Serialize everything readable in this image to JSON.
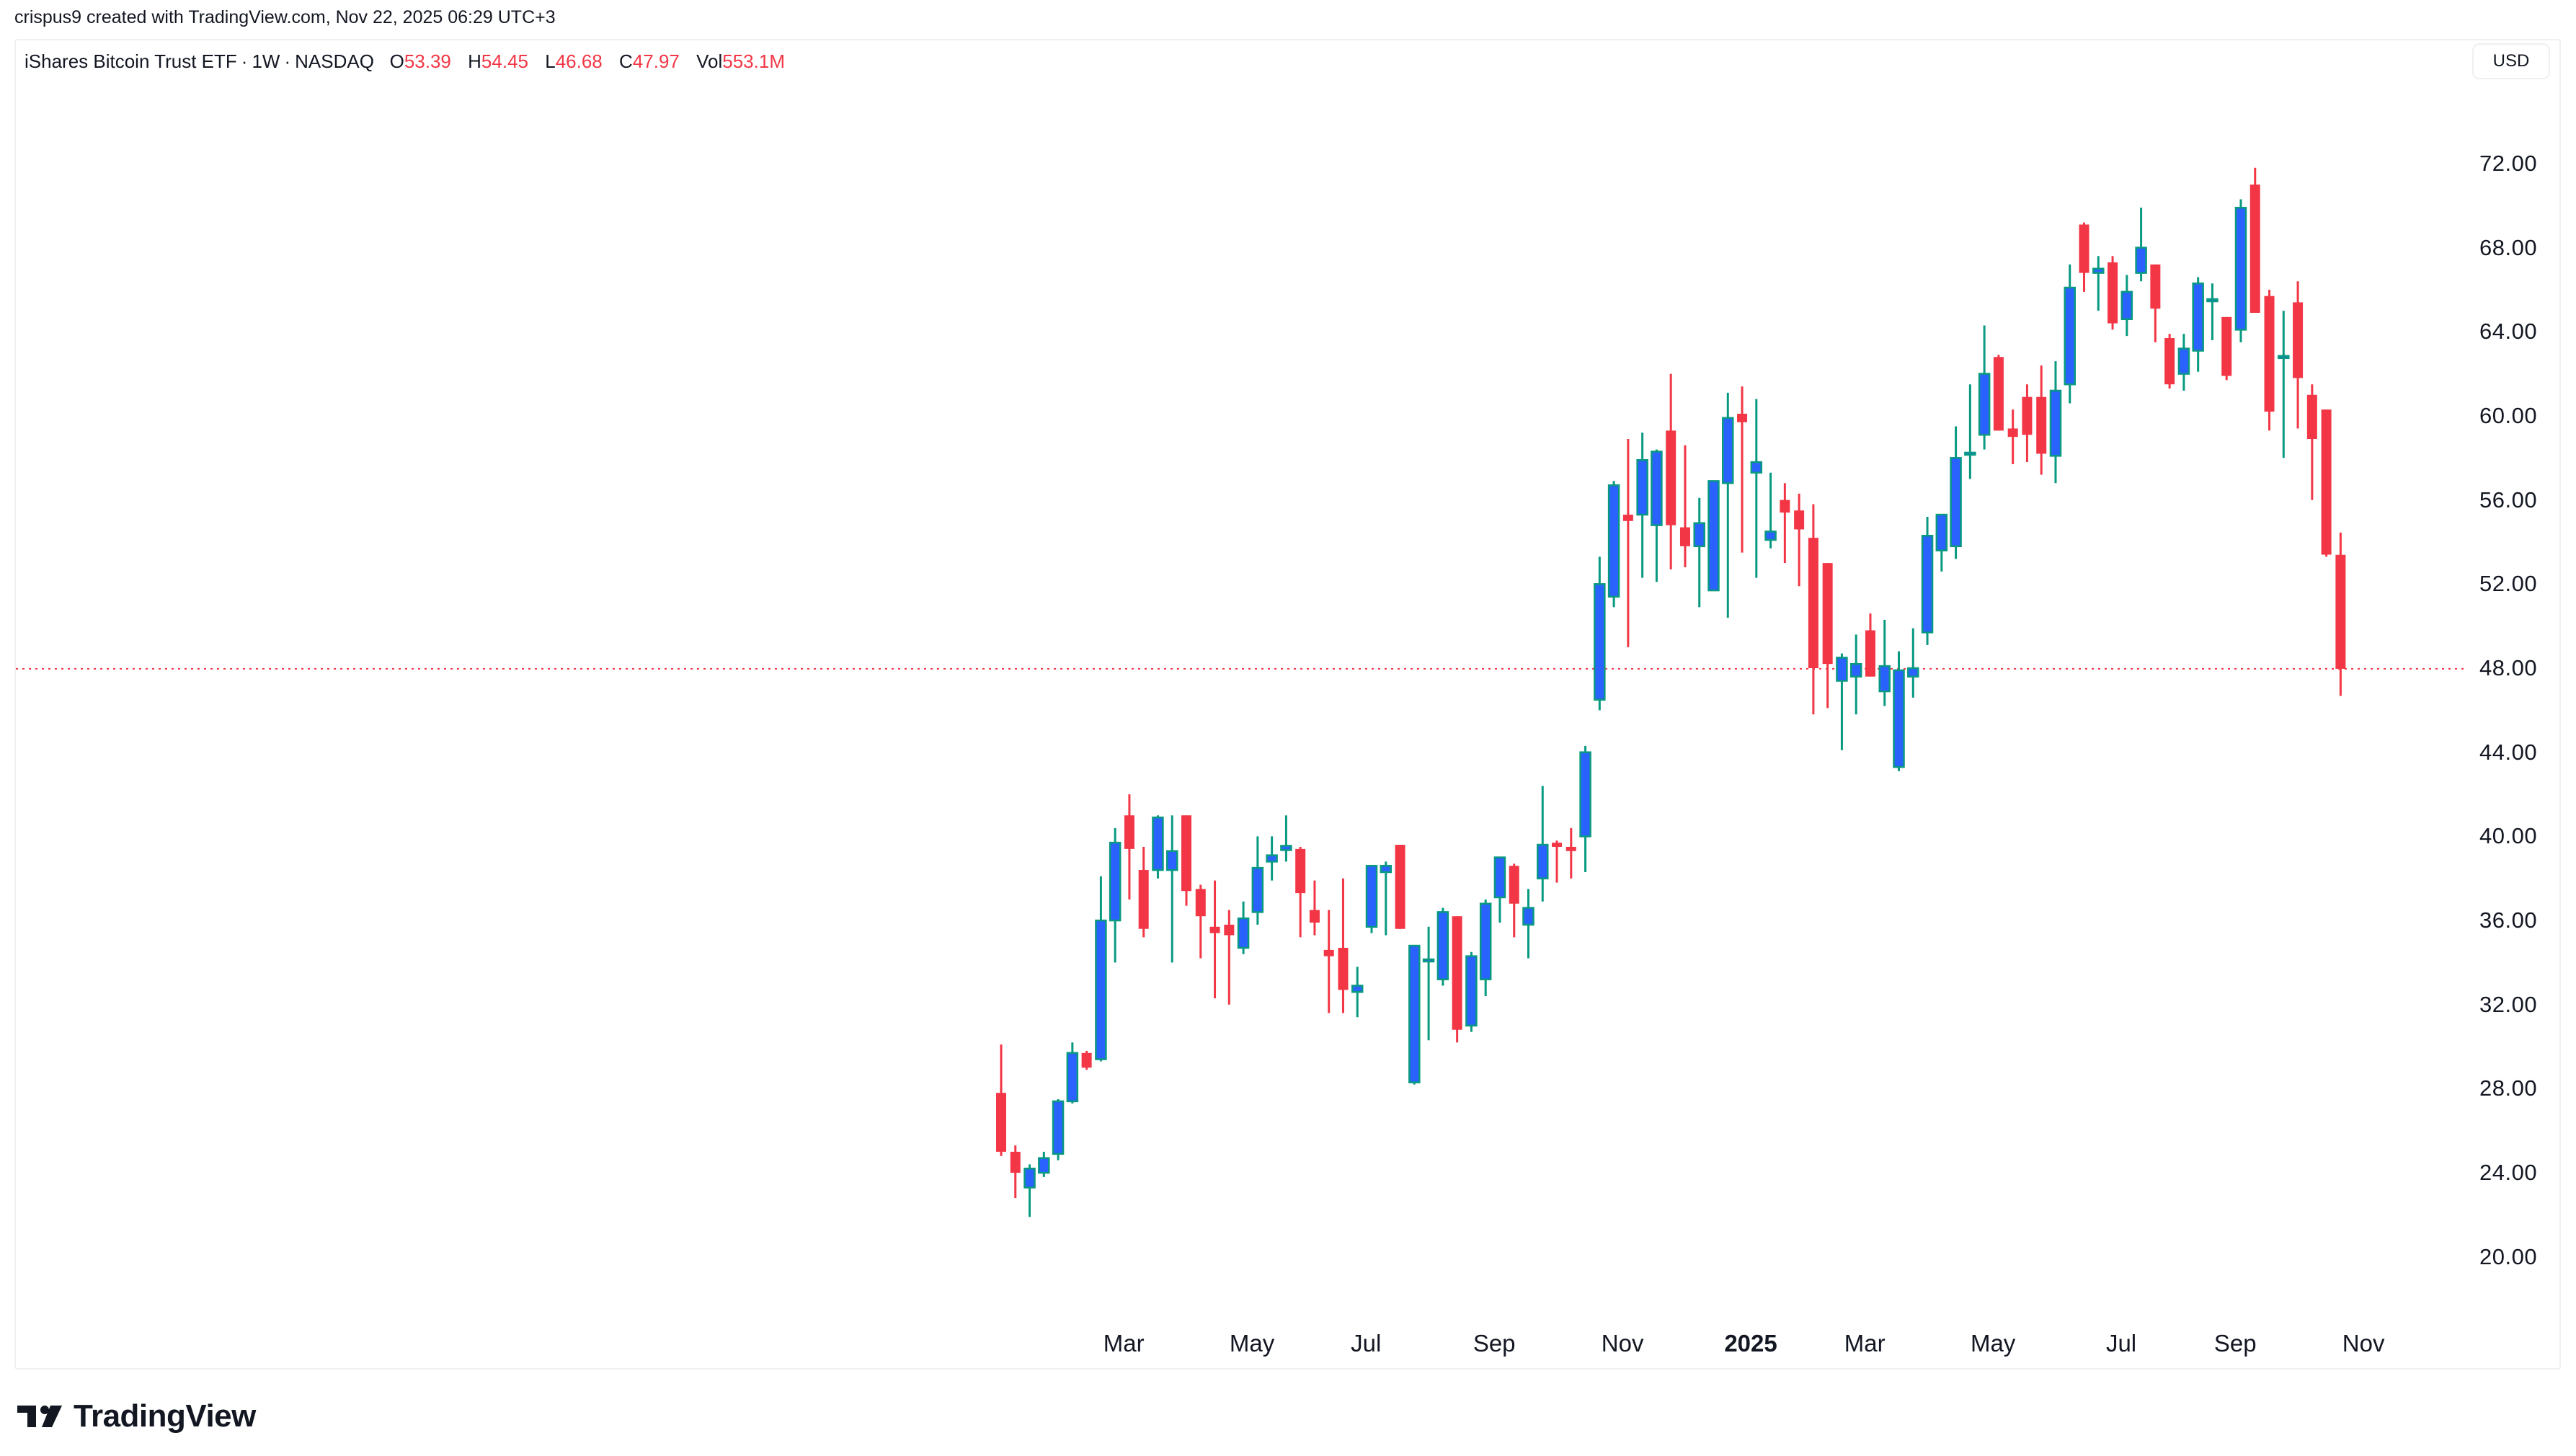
{
  "header": {
    "credit": "crispus9 created with TradingView.com, Nov 22, 2025 06:29 UTC+3"
  },
  "legend": {
    "symbol": "iShares Bitcoin Trust ETF",
    "interval": "1W",
    "exchange": "NASDAQ",
    "open_label": "O",
    "open": "53.39",
    "high_label": "H",
    "high": "54.45",
    "low_label": "L",
    "low": "46.68",
    "close_label": "C",
    "close": "47.97",
    "vol_label": "Vol",
    "vol": "553.1M"
  },
  "currency_button": "USD",
  "footer": {
    "brand": "TradingView"
  },
  "colors": {
    "up_body": "#2962ff",
    "up_border": "#089981",
    "down": "#f23645",
    "last_price_line": "#f23645",
    "axis_text": "#131722"
  },
  "chart_data": {
    "type": "candlestick",
    "title": "iShares Bitcoin Trust ETF · 1W · NASDAQ",
    "xlabel": "",
    "ylabel": "USD",
    "ylim": [
      17,
      75
    ],
    "y_ticks": [
      "72.00",
      "68.00",
      "64.00",
      "60.00",
      "56.00",
      "52.00",
      "48.00",
      "44.00",
      "40.00",
      "36.00",
      "32.00",
      "28.00",
      "24.00",
      "20.00"
    ],
    "x_ticks": [
      {
        "label": "Mar",
        "week": 8,
        "bold": false
      },
      {
        "label": "May",
        "week": 17,
        "bold": false
      },
      {
        "label": "Jul",
        "week": 25,
        "bold": false
      },
      {
        "label": "Sep",
        "week": 34,
        "bold": false
      },
      {
        "label": "Nov",
        "week": 43,
        "bold": false
      },
      {
        "label": "2025",
        "week": 52,
        "bold": true
      },
      {
        "label": "Mar",
        "week": 60,
        "bold": false
      },
      {
        "label": "May",
        "week": 69,
        "bold": false
      },
      {
        "label": "Jul",
        "week": 78,
        "bold": false
      },
      {
        "label": "Sep",
        "week": 86,
        "bold": false
      },
      {
        "label": "Nov",
        "week": 95,
        "bold": false
      }
    ],
    "last_price": 47.97,
    "grid": false,
    "candles": [
      [
        27.8,
        30.1,
        24.8,
        25.0
      ],
      [
        25.0,
        25.3,
        22.8,
        24.0
      ],
      [
        23.3,
        24.4,
        21.9,
        24.2
      ],
      [
        24.0,
        25.0,
        23.8,
        24.7
      ],
      [
        24.9,
        27.5,
        24.6,
        27.4
      ],
      [
        27.4,
        30.2,
        27.3,
        29.7
      ],
      [
        29.7,
        29.8,
        28.9,
        29.0
      ],
      [
        29.4,
        38.1,
        29.3,
        36.0
      ],
      [
        36.0,
        40.4,
        34.0,
        39.7
      ],
      [
        41.0,
        42.0,
        37.0,
        39.4
      ],
      [
        38.4,
        39.5,
        35.2,
        35.6
      ],
      [
        38.4,
        41.0,
        38.0,
        40.9
      ],
      [
        38.4,
        41.0,
        34.0,
        39.3
      ],
      [
        41.0,
        41.0,
        36.7,
        37.4
      ],
      [
        37.5,
        37.7,
        34.2,
        36.2
      ],
      [
        35.7,
        37.9,
        32.3,
        35.4
      ],
      [
        35.8,
        36.5,
        32.0,
        35.3
      ],
      [
        34.7,
        36.9,
        34.4,
        36.1
      ],
      [
        36.4,
        40.0,
        35.8,
        38.5
      ],
      [
        38.8,
        40.0,
        37.9,
        39.1
      ],
      [
        39.4,
        41.0,
        38.8,
        39.5
      ],
      [
        39.4,
        39.5,
        35.2,
        37.3
      ],
      [
        36.5,
        37.9,
        35.3,
        35.9
      ],
      [
        34.6,
        36.5,
        31.6,
        34.3
      ],
      [
        34.7,
        38.0,
        31.6,
        32.7
      ],
      [
        32.6,
        33.8,
        31.4,
        32.9
      ],
      [
        35.7,
        38.3,
        35.4,
        38.6
      ],
      [
        38.3,
        38.8,
        35.3,
        38.6
      ],
      [
        39.6,
        39.6,
        35.6,
        35.6
      ],
      [
        28.3,
        34.7,
        28.2,
        34.8
      ],
      [
        34.1,
        35.7,
        30.3,
        34.1
      ],
      [
        33.2,
        36.6,
        32.9,
        36.4
      ],
      [
        36.2,
        36.1,
        30.2,
        30.8
      ],
      [
        31.0,
        34.5,
        30.7,
        34.3
      ],
      [
        33.2,
        37.0,
        32.4,
        36.8
      ],
      [
        37.1,
        38.7,
        35.9,
        39.0
      ],
      [
        38.6,
        38.7,
        35.2,
        36.8
      ],
      [
        35.8,
        37.5,
        34.2,
        36.6
      ],
      [
        38.0,
        42.4,
        36.9,
        39.6
      ],
      [
        39.7,
        39.8,
        37.8,
        39.5
      ],
      [
        39.5,
        40.4,
        38.0,
        39.3
      ],
      [
        40.0,
        44.3,
        38.3,
        44.0
      ],
      [
        46.5,
        53.3,
        46.0,
        52.0
      ],
      [
        51.4,
        56.9,
        50.9,
        56.7
      ],
      [
        55.3,
        58.9,
        49.0,
        55.0
      ],
      [
        55.3,
        59.2,
        52.3,
        57.9
      ],
      [
        54.8,
        58.4,
        52.1,
        58.3
      ],
      [
        59.3,
        62.0,
        52.7,
        54.8
      ],
      [
        54.7,
        58.6,
        52.8,
        53.8
      ],
      [
        53.8,
        56.1,
        50.9,
        54.9
      ],
      [
        51.7,
        56.1,
        52.3,
        56.9
      ],
      [
        56.8,
        61.1,
        50.4,
        59.9
      ],
      [
        60.1,
        61.4,
        53.5,
        59.7
      ],
      [
        57.3,
        60.8,
        52.3,
        57.8
      ],
      [
        54.1,
        57.3,
        53.7,
        54.5
      ],
      [
        56.0,
        56.8,
        53.0,
        55.4
      ],
      [
        55.5,
        56.3,
        51.9,
        54.6
      ],
      [
        54.2,
        55.8,
        45.8,
        48.0
      ],
      [
        53.0,
        53.0,
        46.1,
        48.2
      ],
      [
        47.4,
        48.7,
        44.1,
        48.5
      ],
      [
        47.6,
        49.6,
        45.8,
        48.2
      ],
      [
        49.8,
        50.6,
        47.7,
        47.6
      ],
      [
        46.9,
        50.3,
        46.2,
        48.1
      ],
      [
        43.3,
        48.8,
        43.1,
        47.9
      ],
      [
        47.6,
        49.9,
        46.6,
        48.0
      ],
      [
        49.7,
        55.2,
        49.1,
        54.3
      ],
      [
        53.6,
        55.1,
        52.6,
        55.3
      ],
      [
        53.8,
        59.5,
        53.2,
        58.0
      ],
      [
        58.2,
        61.5,
        57.0,
        58.2
      ],
      [
        59.1,
        64.3,
        58.4,
        62.0
      ],
      [
        62.8,
        62.9,
        59.5,
        59.3
      ],
      [
        59.4,
        60.3,
        57.7,
        59.0
      ],
      [
        60.9,
        61.5,
        57.8,
        59.1
      ],
      [
        60.9,
        62.4,
        57.2,
        58.2
      ],
      [
        58.1,
        62.6,
        56.8,
        61.2
      ],
      [
        61.5,
        67.2,
        60.6,
        66.1
      ],
      [
        69.1,
        69.2,
        65.9,
        66.8
      ],
      [
        66.8,
        67.6,
        65.0,
        67.0
      ],
      [
        67.3,
        67.6,
        64.1,
        64.4
      ],
      [
        64.6,
        66.7,
        63.8,
        65.9
      ],
      [
        66.8,
        69.9,
        66.4,
        68.0
      ],
      [
        67.2,
        66.8,
        63.5,
        65.1
      ],
      [
        63.7,
        63.9,
        61.3,
        61.5
      ],
      [
        62.0,
        63.9,
        61.2,
        63.2
      ],
      [
        63.1,
        66.6,
        62.1,
        66.3
      ],
      [
        65.5,
        66.3,
        63.6,
        65.5
      ],
      [
        64.7,
        64.7,
        61.7,
        61.9
      ],
      [
        64.1,
        70.3,
        63.5,
        69.9
      ],
      [
        71.0,
        71.8,
        65.5,
        64.9
      ],
      [
        65.7,
        66.0,
        59.3,
        60.2
      ],
      [
        62.8,
        65.0,
        58.0,
        62.8
      ],
      [
        65.4,
        66.4,
        59.4,
        61.8
      ],
      [
        61.0,
        61.5,
        56.0,
        58.9
      ],
      [
        60.3,
        60.3,
        53.3,
        53.4
      ],
      [
        53.39,
        54.45,
        46.68,
        47.97
      ]
    ]
  }
}
